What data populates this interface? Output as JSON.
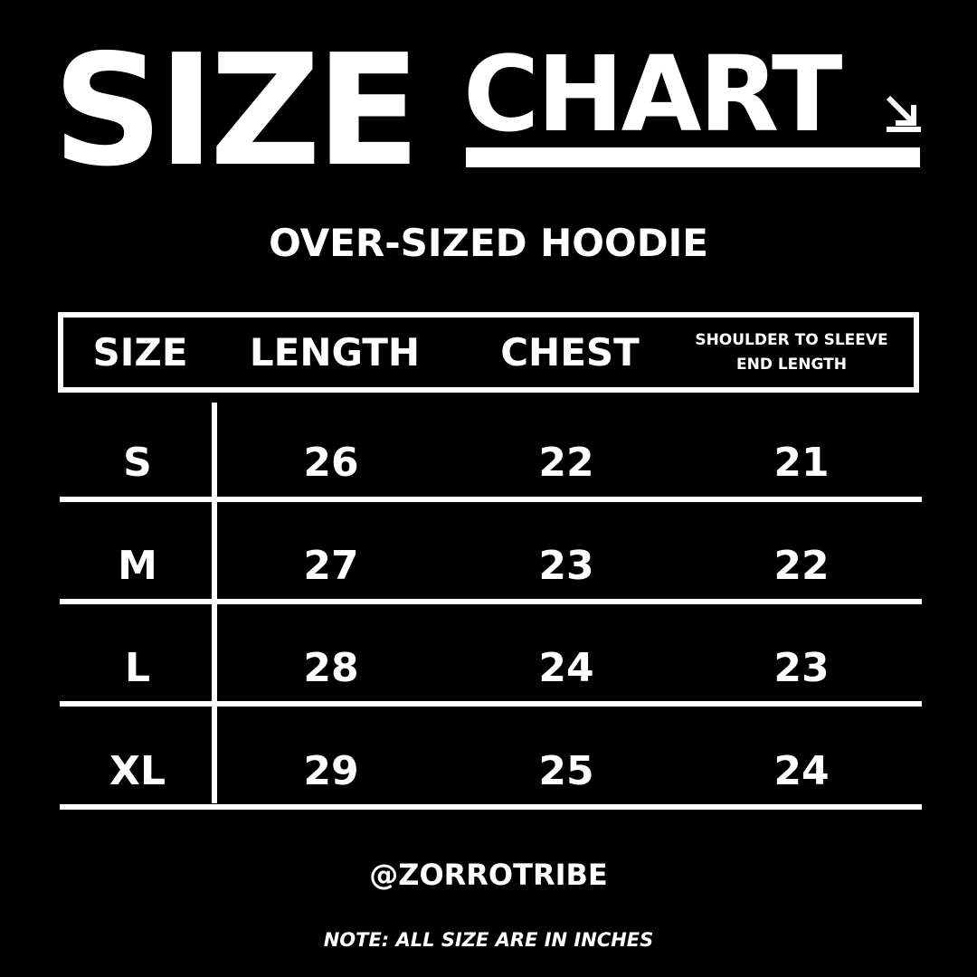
{
  "title": {
    "word1": "SIZE",
    "word2": "CHART",
    "icon": "arrow-down-right-icon"
  },
  "subtitle": "OVER-SIZED HOODIE",
  "table": {
    "headers": [
      "SIZE",
      "LENGTH",
      "CHEST",
      "SHOULDER TO SLEEVE END LENGTH"
    ],
    "header_small_lines": [
      "SHOULDER TO SLEEVE",
      "END LENGTH"
    ],
    "rows": [
      [
        "S",
        "26",
        "22",
        "21"
      ],
      [
        "M",
        "27",
        "23",
        "22"
      ],
      [
        "L",
        "28",
        "24",
        "23"
      ],
      [
        "XL",
        "29",
        "25",
        "24"
      ]
    ]
  },
  "handle": "@ZORROTRIBE",
  "note": "NOTE: ALL SIZE ARE IN INCHES",
  "colors": {
    "background": "#000000",
    "foreground": "#ffffff"
  }
}
